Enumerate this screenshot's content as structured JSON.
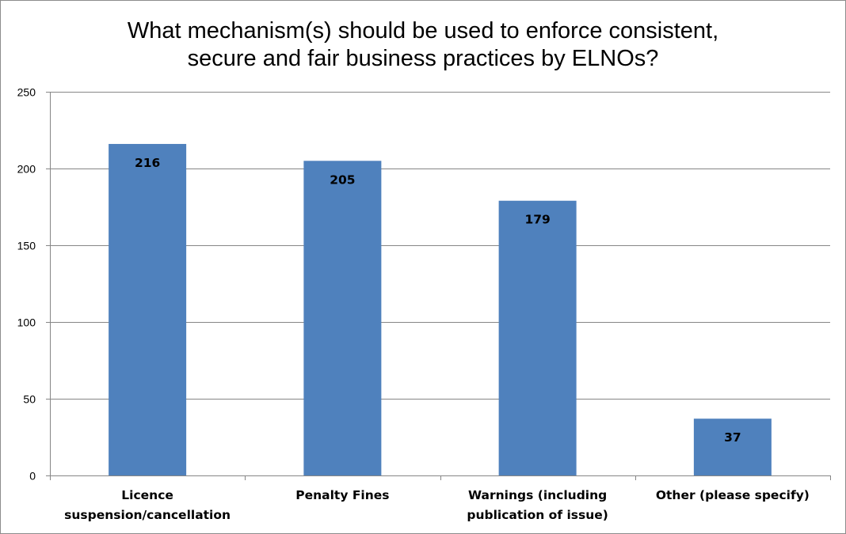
{
  "chart_data": {
    "type": "bar",
    "title": [
      "What mechanism(s) should be used to enforce consistent,",
      "secure and fair business practices by ELNOs?"
    ],
    "categories": [
      [
        "Licence",
        "suspension/cancellation"
      ],
      [
        "Penalty Fines"
      ],
      [
        "Warnings (including",
        "publication of issue)"
      ],
      [
        "Other (please specify)"
      ]
    ],
    "values": [
      216,
      205,
      179,
      37
    ],
    "data_labels": [
      "216",
      "205",
      "179",
      "37"
    ],
    "ylim": [
      0,
      250
    ],
    "yticks": [
      0,
      50,
      100,
      150,
      200,
      250
    ],
    "grid": true,
    "legend": "none",
    "bar_color": "#4f81bd"
  }
}
